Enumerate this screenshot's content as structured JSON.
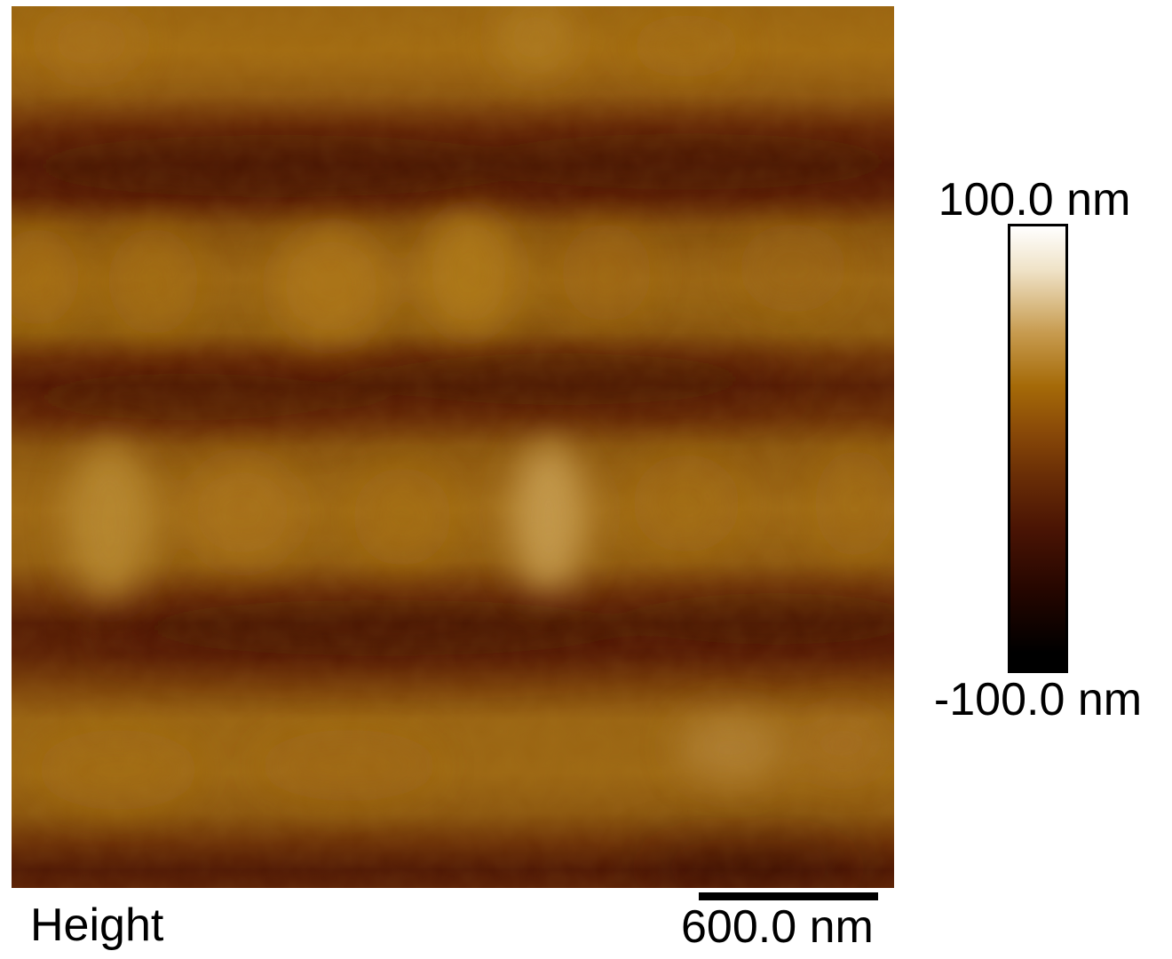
{
  "image": {
    "channel_label": "Height",
    "scale_bar_label": "600.0 nm",
    "colorbar": {
      "max_label": "100.0 nm",
      "min_label": "-100.0 nm",
      "colors": [
        "#ffffff",
        "#c79b4f",
        "#a56a08",
        "#6a2e06",
        "#250600",
        "#000000"
      ]
    },
    "palette": {
      "trough": "#5a1f04",
      "ridge": "#a26a12",
      "highlight": "#c9a055"
    }
  }
}
